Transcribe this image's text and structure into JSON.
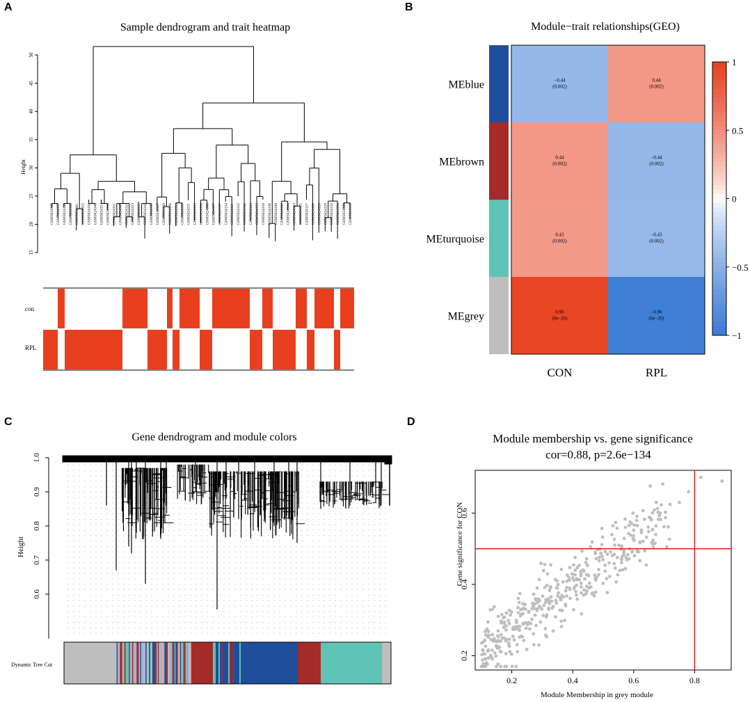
{
  "panels": {
    "A": "A",
    "B": "B",
    "C": "C",
    "D": "D"
  },
  "chart_data": [
    {
      "id": "A",
      "type": "dendrogram",
      "title": "Sample dendrogram and trait heatmap",
      "ylabel": "Height",
      "ylim": [
        15,
        52
      ],
      "yticks": [
        "15",
        "20",
        "25",
        "30",
        "35",
        "40",
        "45",
        "50"
      ],
      "samples": [
        "GSM5024348",
        "GSM5024357",
        "GSM5024338",
        "GSM5024346",
        "GSM5024361",
        "GSM5024352",
        "GSM5024358",
        "GSM5024345",
        "GSM5024353",
        "GSM5024354",
        "GSM5024351",
        "GSM5024365",
        "GSM5024324",
        "GSM5024323",
        "GSM5024335",
        "GSM5024341",
        "GSM5024350",
        "GSM5024347",
        "GSM5024349",
        "GSM5024326",
        "GSM5024364",
        "GSM5024339",
        "GSM5024331",
        "GSM5024333",
        "GSM5024356",
        "GSM5024366",
        "GSM5024367",
        "GSM5024337",
        "GSM5024334",
        "GSM5024321",
        "GSM5024322",
        "GSM5024342",
        "GSM5024343",
        "GSM5024355",
        "GSM5024359",
        "GSM5024336",
        "GSM5024340",
        "GSM5024362",
        "GSM5024344",
        "GSM5024363",
        "GSM5024325",
        "GSM5024327",
        "GSM5024360",
        "GSM5024320",
        "GSM5024329",
        "GSM5024332",
        "GSM5024356",
        "GSM5024328",
        "GSM5024330"
      ],
      "traits": [
        "con",
        "RPL"
      ],
      "trait_color": "#e8401f"
    },
    {
      "id": "B",
      "type": "heatmap",
      "title": "Module−trait relationships(GEO)",
      "columns": [
        "CON",
        "RPL"
      ],
      "rows": [
        {
          "name": "MEblue",
          "module_color": "#1f4e9c",
          "cells": [
            {
              "value": -0.44,
              "corr": "−0.44",
              "p": "(0.002)"
            },
            {
              "value": 0.44,
              "corr": "0.44",
              "p": "(0.002)"
            }
          ]
        },
        {
          "name": "MEbrown",
          "module_color": "#a52a2a",
          "cells": [
            {
              "value": 0.44,
              "corr": "0.44",
              "p": "(0.002)"
            },
            {
              "value": -0.44,
              "corr": "−0.44",
              "p": "(0.002)"
            }
          ]
        },
        {
          "name": "MEturquoise",
          "module_color": "#5fc3b5",
          "cells": [
            {
              "value": 0.43,
              "corr": "0.43",
              "p": "(0.002)"
            },
            {
              "value": -0.43,
              "corr": "−0.43",
              "p": "(0.002)"
            }
          ]
        },
        {
          "name": "MEgrey",
          "module_color": "#bebebe",
          "cells": [
            {
              "value": 0.96,
              "corr": "0.96",
              "p": "(6e−26)"
            },
            {
              "value": -0.96,
              "corr": "−0.96",
              "p": "(6e−26)"
            }
          ]
        }
      ],
      "colorbar": {
        "range": [
          -1,
          1
        ],
        "ticks": [
          "1",
          "0.5",
          "0",
          "−0.5",
          "−1"
        ]
      }
    },
    {
      "id": "C",
      "type": "dendrogram",
      "title": "Gene dendrogram and module colors",
      "ylabel": "Height",
      "ylim": [
        0.5,
        1.0
      ],
      "yticks": [
        "0.6",
        "0.7",
        "0.8",
        "0.9",
        "1.0"
      ],
      "color_row_label": "Dynamic Tree Cut",
      "module_colors": {
        "grey": "#bebebe",
        "brown": "#a52a2a",
        "blue": "#1f4e9c",
        "turquoise": "#5fc3b5"
      }
    },
    {
      "id": "D",
      "type": "scatter",
      "title": "Module membership vs. gene significance",
      "subtitle": "cor=0.88, p=2.6e−134",
      "xlabel": "Module Membership in grey module",
      "ylabel": "Gene significance for CON",
      "xlim": [
        0.08,
        0.92
      ],
      "ylim": [
        0.16,
        0.72
      ],
      "xticks": [
        "0.2",
        "0.4",
        "0.6",
        "0.8"
      ],
      "yticks": [
        "0.2",
        "0.4",
        "0.6"
      ],
      "vline": 0.8,
      "hline": 0.5,
      "point_color": "#bebebe",
      "line_color": "#e31a1c",
      "n_points": 420,
      "correlation": 0.88,
      "highlight_points": [
        [
          0.82,
          0.7
        ],
        [
          0.89,
          0.69
        ],
        [
          0.78,
          0.66
        ],
        [
          0.75,
          0.63
        ]
      ]
    }
  ]
}
